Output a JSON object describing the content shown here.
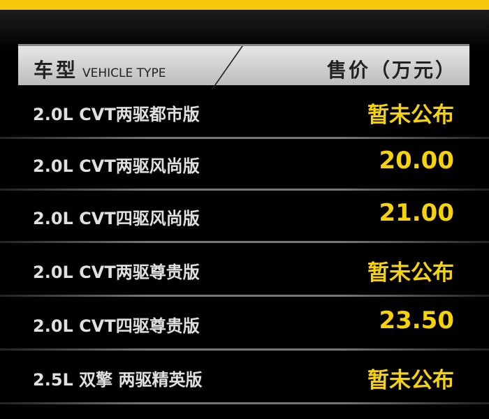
{
  "header": {
    "type_cn": "车型",
    "type_en": "VEHICLE TYPE",
    "price": "售价（万元）"
  },
  "rows": [
    {
      "name": "2.0L CVT两驱都市版",
      "price": "暂未公布"
    },
    {
      "name": "2.0L CVT两驱风尚版",
      "price": "20.00"
    },
    {
      "name": "2.0L CVT四驱风尚版",
      "price": "21.00"
    },
    {
      "name": "2.0L CVT两驱尊贵版",
      "price": "暂未公布"
    },
    {
      "name": "2.0L CVT四驱尊贵版",
      "price": "23.50"
    },
    {
      "name": "2.5L 双擎 两驱精英版",
      "price": "暂未公布"
    }
  ],
  "colors": {
    "accent": "#f5c70c",
    "price": "#f5d20c"
  }
}
